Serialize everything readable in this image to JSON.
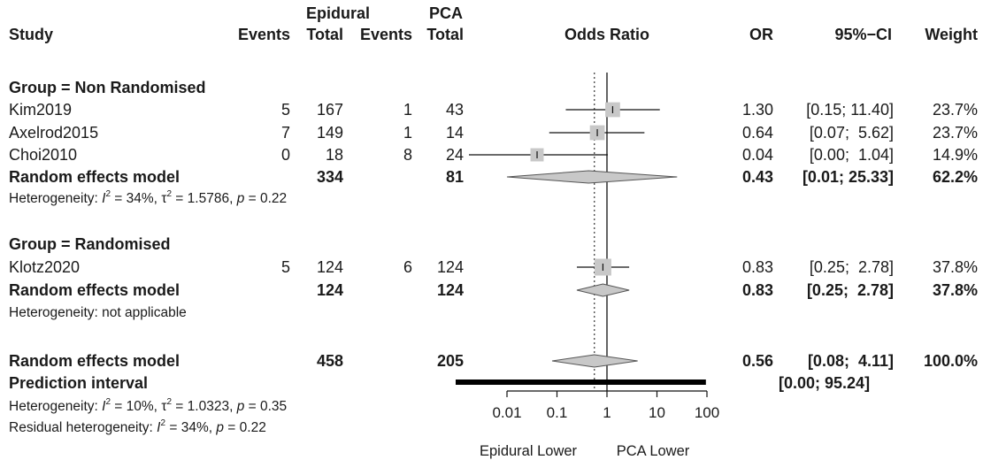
{
  "header": {
    "epidural": "Epidural",
    "pca": "PCA",
    "study": "Study",
    "events1": "Events",
    "total1": "Total",
    "events2": "Events",
    "total2": "Total",
    "odds_ratio": "Odds Ratio",
    "or": "OR",
    "ci": "95%−CI",
    "weight": "Weight"
  },
  "groups": [
    {
      "label": "Group = Non Randomised",
      "studies": [
        {
          "name": "Kim2019",
          "e1": "5",
          "t1": "167",
          "e2": "1",
          "t2": "43",
          "or": "1.30",
          "ci": "[0.15; 11.40]",
          "weight": "23.7%"
        },
        {
          "name": "Axelrod2015",
          "e1": "7",
          "t1": "149",
          "e2": "1",
          "t2": "14",
          "or": "0.64",
          "ci": "[0.07;  5.62]",
          "weight": "23.7%"
        },
        {
          "name": "Choi2010",
          "e1": "0",
          "t1": "18",
          "e2": "8",
          "t2": "24",
          "or": "0.04",
          "ci": "[0.00;  1.04]",
          "weight": "14.9%"
        }
      ],
      "summary": {
        "name": "Random effects model",
        "t1": "334",
        "t2": "81",
        "or": "0.43",
        "ci": "[0.01; 25.33]",
        "weight": "62.2%"
      },
      "heterogeneity": {
        "prefix": "Heterogeneity: ",
        "i2_sym": "I",
        "i2_text": " = 34%, ",
        "tau_sym": "τ",
        "tau_text": " = 1.5786, ",
        "p_sym": "p",
        "p_text": " = 0.22"
      }
    },
    {
      "label": "Group = Randomised",
      "studies": [
        {
          "name": "Klotz2020",
          "e1": "5",
          "t1": "124",
          "e2": "6",
          "t2": "124",
          "or": "0.83",
          "ci": "[0.25;  2.78]",
          "weight": "37.8%"
        }
      ],
      "summary": {
        "name": "Random effects model",
        "t1": "124",
        "t2": "124",
        "or": "0.83",
        "ci": "[0.25;  2.78]",
        "weight": "37.8%"
      },
      "heterogeneity_text": "Heterogeneity: not applicable"
    }
  ],
  "overall": {
    "name": "Random effects model",
    "t1": "458",
    "t2": "205",
    "or": "0.56",
    "ci": "[0.08;  4.11]",
    "weight": "100.0%",
    "pi_label": "Prediction interval",
    "pi_ci": "[0.00; 95.24]",
    "het": {
      "prefix": "Heterogeneity: ",
      "i2_sym": "I",
      "i2_text": " = 10%, ",
      "tau_sym": "τ",
      "tau_text": " = 1.0323, ",
      "p_sym": "p",
      "p_text": " = 0.35"
    },
    "resid": {
      "prefix": "Residual heterogeneity: ",
      "i2_sym": "I",
      "i2_text": " = 34%, ",
      "p_sym": "p",
      "p_text": " = 0.22"
    }
  },
  "superscript": "2",
  "chart_data": {
    "type": "forest",
    "scale": "log",
    "x_ticks": [
      0.01,
      0.1,
      1,
      10,
      100
    ],
    "x_tick_labels": [
      "0.01",
      "0.1",
      "1",
      "10",
      "100"
    ],
    "xlabel_left": "Epidural Lower",
    "xlabel_right": "PCA Lower",
    "null_line": 1,
    "overall_line": 0.56,
    "studies": [
      {
        "name": "Kim2019",
        "or": 1.3,
        "lower": 0.15,
        "upper": 11.4,
        "weight": 23.7
      },
      {
        "name": "Axelrod2015",
        "or": 0.64,
        "lower": 0.07,
        "upper": 5.62,
        "weight": 23.7
      },
      {
        "name": "Choi2010",
        "or": 0.04,
        "lower": 0.0,
        "upper": 1.04,
        "weight": 14.9
      },
      {
        "name": "Klotz2020",
        "or": 0.83,
        "lower": 0.25,
        "upper": 2.78,
        "weight": 37.8
      }
    ],
    "summaries": [
      {
        "name": "Random effects model (Non Randomised)",
        "or": 0.43,
        "lower": 0.01,
        "upper": 25.33
      },
      {
        "name": "Random effects model (Randomised)",
        "or": 0.83,
        "lower": 0.25,
        "upper": 2.78
      },
      {
        "name": "Random effects model (Overall)",
        "or": 0.56,
        "lower": 0.08,
        "upper": 4.11
      }
    ],
    "prediction_interval": {
      "lower": 0.0,
      "upper": 95.24
    }
  }
}
